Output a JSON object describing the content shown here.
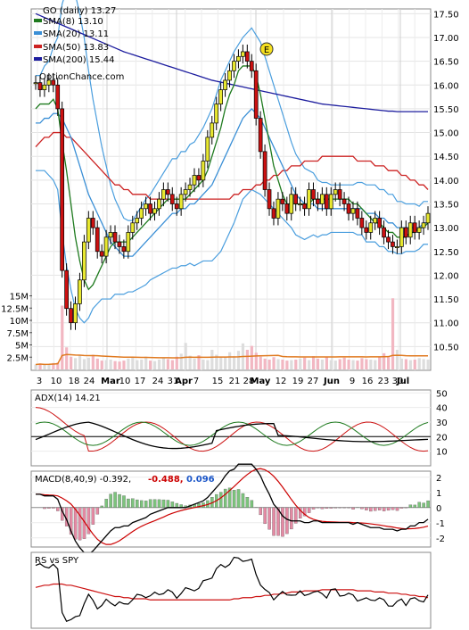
{
  "chart_data": {
    "type": "candlestick",
    "ticker_label": "GO (daily) 13.27",
    "watermark": "OptionChance.com",
    "legend": [
      {
        "label": "SMA(8) 13.10",
        "color": "#1e7a1e"
      },
      {
        "label": "SMA(20) 13.11",
        "color": "#3a8fd6"
      },
      {
        "label": "SMA(50) 13.83",
        "color": "#cc2222"
      },
      {
        "label": "SMA(200) 15.44",
        "color": "#1c1c9e"
      }
    ],
    "price_axis": {
      "min": 10.0,
      "max": 17.6,
      "ticks": [
        "17.50",
        "17.00",
        "16.50",
        "16.00",
        "15.50",
        "15.00",
        "14.50",
        "14.00",
        "13.50",
        "13.00",
        "12.50",
        "12.00",
        "11.50",
        "11.00",
        "10.50"
      ]
    },
    "volume_axis": {
      "ticks": [
        "15M",
        "12.5M",
        "10M",
        "7.5M",
        "5M",
        "2.5M"
      ]
    },
    "date_labels": [
      "3",
      "10",
      "18",
      "24",
      "Mar",
      "10",
      "17",
      "24",
      "31",
      "Apr",
      "7",
      "15",
      "21",
      "28",
      "May",
      "12",
      "19",
      "27",
      "Jun",
      "9",
      "16",
      "23",
      "30",
      "Jul"
    ],
    "earnings_marker": "E",
    "adx": {
      "label": "ADX(14) 14.21",
      "ticks": [
        "50",
        "40",
        "30",
        "20",
        "10"
      ],
      "reference_level": 20
    },
    "macd": {
      "label": "MACD(8,40,9) -0.392,",
      "value_signal": "-0.488,",
      "value_hist": "0.096",
      "signal_color": "#cc0000",
      "hist_color": "#1a55c8",
      "ticks": [
        "2",
        "1",
        "0",
        "-1",
        "-2"
      ]
    },
    "rs": {
      "label": "RS vs SPY"
    },
    "series": [
      {
        "name": "Close",
        "values": [
          16.05,
          15.9,
          16.0,
          16.1,
          16.0,
          15.5,
          12.1,
          11.3,
          11.0,
          11.4,
          11.9,
          12.7,
          13.2,
          13.0,
          12.5,
          12.4,
          12.8,
          12.9,
          12.7,
          12.6,
          12.5,
          12.9,
          13.1,
          13.2,
          13.4,
          13.5,
          13.3,
          13.4,
          13.6,
          13.8,
          13.7,
          13.5,
          13.4,
          13.7,
          13.8,
          13.9,
          14.1,
          14.0,
          14.4,
          14.9,
          15.2,
          15.6,
          15.9,
          16.1,
          16.3,
          16.5,
          16.6,
          16.7,
          16.5,
          16.3,
          15.3,
          14.6,
          13.8,
          13.4,
          13.2,
          13.6,
          13.5,
          13.3,
          13.7,
          13.5,
          13.5,
          13.4,
          13.8,
          13.6,
          13.5,
          13.7,
          13.4,
          13.7,
          13.8,
          13.6,
          13.5,
          13.3,
          13.4,
          13.2,
          13.0,
          12.9,
          13.1,
          13.2,
          13.0,
          12.8,
          12.7,
          12.6,
          12.6,
          13.0,
          12.8,
          13.1,
          12.9,
          13.0,
          13.1,
          13.3
        ]
      },
      {
        "name": "SMA(8)",
        "values": [
          15.5,
          15.6,
          15.6,
          15.6,
          15.7,
          15.5,
          14.8,
          14.2,
          13.5,
          12.8,
          12.3,
          11.9,
          11.7,
          11.8,
          12.0,
          12.2,
          12.4,
          12.6,
          12.7,
          12.7,
          12.7,
          12.7,
          12.8,
          12.9,
          13.0,
          13.1,
          13.2,
          13.3,
          13.4,
          13.5,
          13.6,
          13.6,
          13.6,
          13.6,
          13.6,
          13.7,
          13.8,
          13.9,
          14.0,
          14.2,
          14.5,
          14.8,
          15.1,
          15.5,
          15.8,
          16.0,
          16.3,
          16.4,
          16.4,
          16.4,
          16.2,
          15.8,
          15.3,
          14.8,
          14.3,
          14.0,
          13.7,
          13.5,
          13.5,
          13.5,
          13.5,
          13.5,
          13.5,
          13.6,
          13.6,
          13.6,
          13.6,
          13.6,
          13.6,
          13.6,
          13.6,
          13.6,
          13.5,
          13.5,
          13.4,
          13.3,
          13.2,
          13.1,
          13.1,
          13.0,
          12.9,
          12.9,
          12.8,
          12.8,
          12.8,
          12.9,
          12.9,
          13.0,
          13.0,
          13.1
        ]
      },
      {
        "name": "SMA(20)",
        "values": [
          15.2,
          15.2,
          15.3,
          15.3,
          15.4,
          15.4,
          15.3,
          15.1,
          14.9,
          14.6,
          14.3,
          14.0,
          13.7,
          13.5,
          13.3,
          13.1,
          12.9,
          12.7,
          12.6,
          12.5,
          12.4,
          12.4,
          12.4,
          12.5,
          12.6,
          12.7,
          12.8,
          12.9,
          13.0,
          13.1,
          13.2,
          13.3,
          13.3,
          13.4,
          13.4,
          13.5,
          13.5,
          13.6,
          13.7,
          13.8,
          13.9,
          14.1,
          14.3,
          14.5,
          14.7,
          14.9,
          15.1,
          15.3,
          15.4,
          15.5,
          15.4,
          15.3,
          15.1,
          14.9,
          14.7,
          14.5,
          14.3,
          14.1,
          13.9,
          13.7,
          13.6,
          13.5,
          13.5,
          13.5,
          13.4,
          13.4,
          13.4,
          13.4,
          13.4,
          13.4,
          13.4,
          13.4,
          13.4,
          13.4,
          13.4,
          13.3,
          13.3,
          13.3,
          13.2,
          13.2,
          13.1,
          13.1,
          13.0,
          13.0,
          13.0,
          13.0,
          13.0,
          13.0,
          13.1,
          13.1
        ]
      },
      {
        "name": "SMA(50)",
        "values": [
          14.7,
          14.8,
          14.9,
          14.9,
          15.0,
          15.0,
          15.0,
          14.9,
          14.9,
          14.8,
          14.7,
          14.6,
          14.5,
          14.4,
          14.3,
          14.2,
          14.1,
          14.0,
          13.9,
          13.9,
          13.8,
          13.8,
          13.7,
          13.7,
          13.7,
          13.7,
          13.6,
          13.6,
          13.6,
          13.6,
          13.6,
          13.6,
          13.6,
          13.6,
          13.6,
          13.6,
          13.6,
          13.6,
          13.6,
          13.6,
          13.6,
          13.6,
          13.6,
          13.6,
          13.6,
          13.7,
          13.7,
          13.8,
          13.8,
          13.8,
          13.9,
          13.9,
          14.0,
          14.0,
          14.1,
          14.1,
          14.2,
          14.2,
          14.3,
          14.3,
          14.3,
          14.4,
          14.4,
          14.4,
          14.4,
          14.5,
          14.5,
          14.5,
          14.5,
          14.5,
          14.5,
          14.5,
          14.5,
          14.4,
          14.4,
          14.4,
          14.4,
          14.3,
          14.3,
          14.3,
          14.2,
          14.2,
          14.2,
          14.1,
          14.1,
          14.0,
          14.0,
          13.9,
          13.9,
          13.8
        ]
      },
      {
        "name": "SMA(200)",
        "values": [
          17.5,
          17.46,
          17.42,
          17.38,
          17.34,
          17.3,
          17.26,
          17.22,
          17.18,
          17.14,
          17.1,
          17.06,
          17.02,
          16.98,
          16.94,
          16.9,
          16.86,
          16.82,
          16.78,
          16.74,
          16.7,
          16.67,
          16.64,
          16.61,
          16.58,
          16.55,
          16.52,
          16.49,
          16.46,
          16.43,
          16.4,
          16.37,
          16.34,
          16.31,
          16.28,
          16.25,
          16.22,
          16.19,
          16.16,
          16.13,
          16.1,
          16.08,
          16.06,
          16.04,
          16.02,
          16.0,
          15.98,
          15.96,
          15.94,
          15.92,
          15.9,
          15.88,
          15.86,
          15.84,
          15.82,
          15.8,
          15.78,
          15.76,
          15.74,
          15.72,
          15.7,
          15.68,
          15.66,
          15.64,
          15.62,
          15.6,
          15.59,
          15.58,
          15.57,
          15.56,
          15.55,
          15.54,
          15.53,
          15.52,
          15.51,
          15.5,
          15.49,
          15.48,
          15.47,
          15.46,
          15.45,
          15.45,
          15.44,
          15.44,
          15.44,
          15.44,
          15.44,
          15.44,
          15.44,
          15.44
        ]
      },
      {
        "name": "Volume",
        "values": [
          1.0,
          1.2,
          0.9,
          1.1,
          1.3,
          1.4,
          13.0,
          4.5,
          2.6,
          2.3,
          2.8,
          2.1,
          2.4,
          3.0,
          2.2,
          1.8,
          1.9,
          2.0,
          1.7,
          1.6,
          1.8,
          2.2,
          2.5,
          1.9,
          2.0,
          2.6,
          1.8,
          1.7,
          2.0,
          2.4,
          2.1,
          1.9,
          2.6,
          3.2,
          5.4,
          2.8,
          2.2,
          2.9,
          2.0,
          1.9,
          4.0,
          3.0,
          2.6,
          2.5,
          3.5,
          2.7,
          3.8,
          5.3,
          4.0,
          4.8,
          3.4,
          2.6,
          2.2,
          2.0,
          2.5,
          2.1,
          2.0,
          1.8,
          1.9,
          2.0,
          2.2,
          2.4,
          1.9,
          2.7,
          2.2,
          2.0,
          2.5,
          1.9,
          1.8,
          2.1,
          2.4,
          2.0,
          1.9,
          1.8,
          2.3,
          2.1,
          2.0,
          1.9,
          2.6,
          3.3,
          2.7,
          14.5,
          4.0,
          2.2,
          2.1,
          1.9,
          2.0,
          2.3,
          2.1,
          2.0
        ]
      }
    ]
  }
}
